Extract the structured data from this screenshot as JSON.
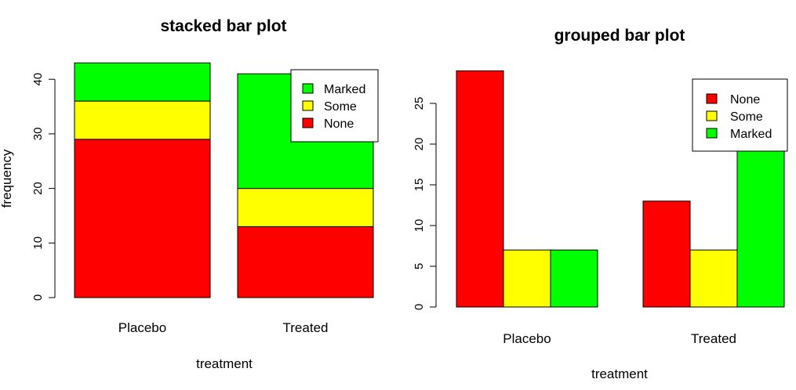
{
  "chart_data": [
    {
      "type": "bar",
      "stacked": true,
      "title": "stacked bar plot",
      "xlabel": "treatment",
      "ylabel": "frequency",
      "categories": [
        "Placebo",
        "Treated"
      ],
      "ylim": [
        0,
        43
      ],
      "yticks": [
        0,
        10,
        20,
        30,
        40
      ],
      "series": [
        {
          "name": "None",
          "values": [
            29,
            13
          ],
          "color": "#ff0000"
        },
        {
          "name": "Some",
          "values": [
            7,
            7
          ],
          "color": "#ffff00"
        },
        {
          "name": "Marked",
          "values": [
            7,
            21
          ],
          "color": "#00ff00"
        }
      ],
      "legend": {
        "position": "top-right",
        "order": [
          "Marked",
          "Some",
          "None"
        ]
      }
    },
    {
      "type": "bar",
      "grouped": true,
      "title": "grouped bar plot",
      "xlabel": "treatment",
      "ylabel": "",
      "categories": [
        "Placebo",
        "Treated"
      ],
      "ylim": [
        0,
        29
      ],
      "yticks": [
        0,
        5,
        10,
        15,
        20,
        25
      ],
      "series": [
        {
          "name": "None",
          "values": [
            29,
            13
          ],
          "color": "#ff0000"
        },
        {
          "name": "Some",
          "values": [
            7,
            7
          ],
          "color": "#ffff00"
        },
        {
          "name": "Marked",
          "values": [
            7,
            21
          ],
          "color": "#00ff00"
        }
      ],
      "legend": {
        "position": "top-right",
        "order": [
          "None",
          "Some",
          "Marked"
        ]
      }
    }
  ]
}
